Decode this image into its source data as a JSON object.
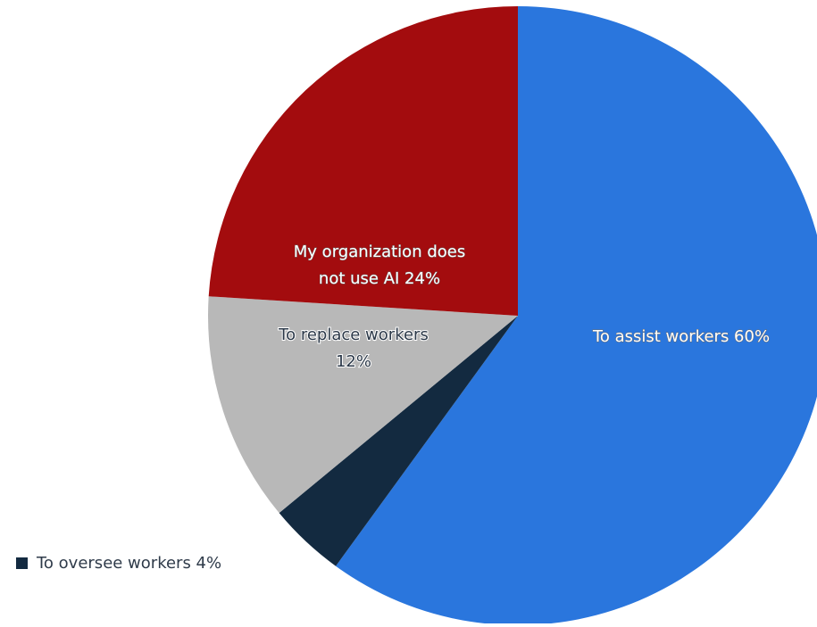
{
  "chart_data": {
    "type": "pie",
    "title": "",
    "slices": [
      {
        "label": "To assist workers",
        "value": 60,
        "display": "To assist workers 60%",
        "color": "#2a76dd"
      },
      {
        "label": "To oversee workers",
        "value": 4,
        "display": "To oversee workers 4%",
        "color": "#132a40"
      },
      {
        "label": "To replace workers",
        "value": 12,
        "display": "To replace workers 12%",
        "color": "#b8b8b8"
      },
      {
        "label": "My organization does not use AI",
        "value": 24,
        "display": "My organization does not use AI 24%",
        "color": "#a30c0e"
      }
    ],
    "start_angle_deg": 0,
    "direction": "clockwise",
    "legend": {
      "placement": "bottom-left",
      "entries": [
        "To oversee workers 4%"
      ]
    },
    "data_labels": [
      {
        "slice": 0,
        "lines": [
          "To assist workers 60%"
        ]
      },
      {
        "slice": 2,
        "lines": [
          "To replace workers",
          "12%"
        ]
      },
      {
        "slice": 3,
        "lines": [
          "My organization does",
          "not use AI 24%"
        ]
      }
    ]
  }
}
